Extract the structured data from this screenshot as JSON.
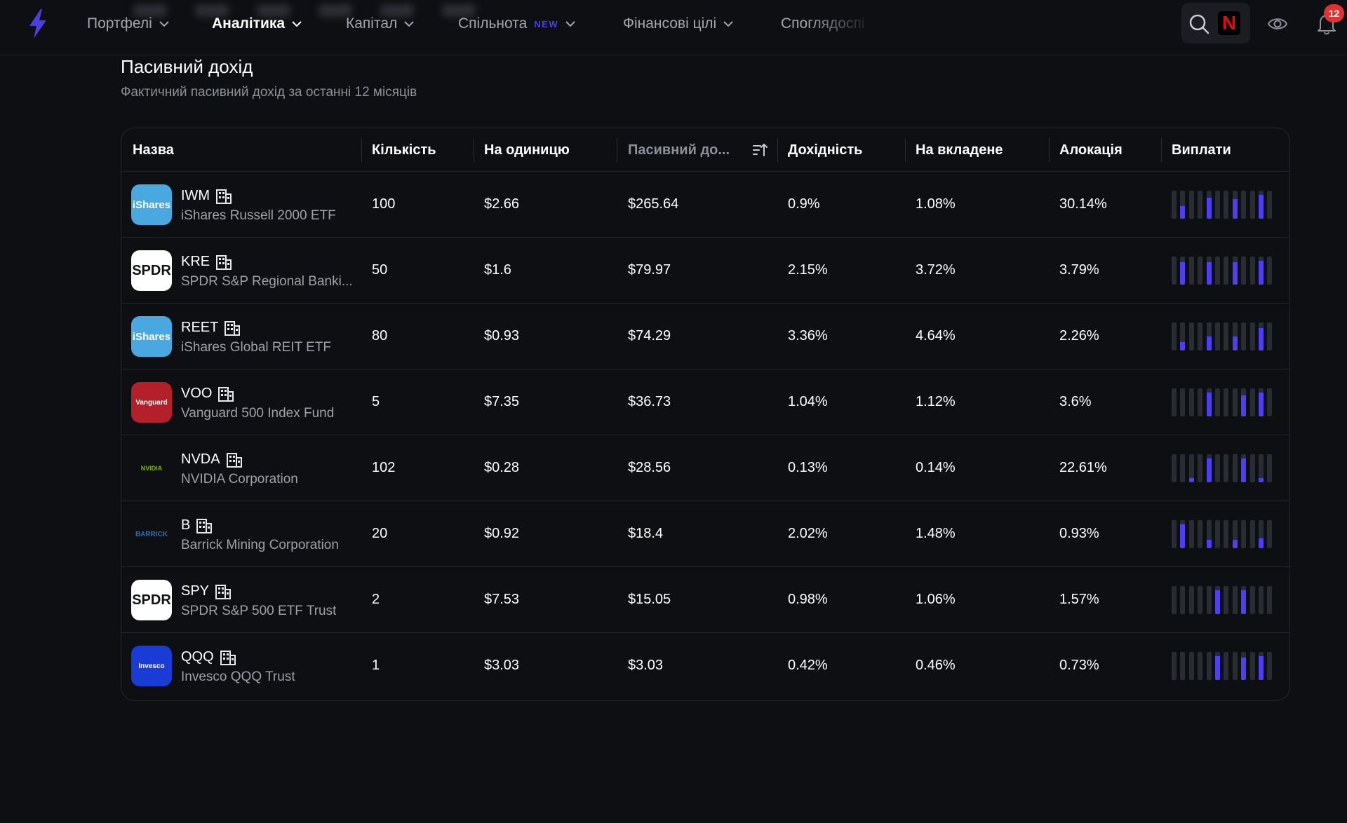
{
  "nav": {
    "items": [
      {
        "label": "Портфелі",
        "active": false,
        "badge": ""
      },
      {
        "label": "Аналітика",
        "active": true,
        "badge": ""
      },
      {
        "label": "Капітал",
        "active": false,
        "badge": ""
      },
      {
        "label": "Спільнота",
        "active": false,
        "badge": "NEW"
      },
      {
        "label": "Фінансові цілі",
        "active": false,
        "badge": ""
      },
      {
        "label": "Споглядоспі",
        "active": false,
        "badge": ""
      }
    ],
    "notification_count": "12",
    "netflix_letter": "N",
    "accent_color": "#4e3ff0"
  },
  "section": {
    "title": "Пасивний дохід",
    "subtitle": "Фактичний пасивний дохід за останні 12 місяців"
  },
  "table": {
    "headers": {
      "name": "Назва",
      "quantity": "Кількість",
      "per_unit": "На одиницю",
      "passive_income": "Пасивний до...",
      "yield": "Дохідність",
      "on_invested": "На вкладене",
      "allocation": "Алокація",
      "payouts": "Виплати"
    },
    "rows": [
      {
        "ticker": "IWM",
        "name": "iShares Russell 2000 ETF",
        "logo": "iShares",
        "logo_bg": "#4aa8e0",
        "logo_fg": "#ffffff",
        "quantity": "100",
        "per_unit": "$2.66",
        "passive_income": "$265.64",
        "yield": "0.9%",
        "on_invested": "1.08%",
        "allocation": "30.14%",
        "payouts": [
          0,
          0.45,
          0,
          0,
          0.75,
          0,
          0,
          0.7,
          0,
          0,
          0.85,
          0
        ]
      },
      {
        "ticker": "KRE",
        "name": "SPDR S&P Regional Banki...",
        "logo": "SPDR",
        "logo_bg": "#ffffff",
        "logo_fg": "#111111",
        "quantity": "50",
        "per_unit": "$1.6",
        "passive_income": "$79.97",
        "yield": "2.15%",
        "on_invested": "3.72%",
        "allocation": "3.79%",
        "payouts": [
          0,
          0.8,
          0,
          0,
          0.8,
          0,
          0,
          0.8,
          0,
          0,
          0.85,
          0
        ]
      },
      {
        "ticker": "REET",
        "name": "iShares Global REIT ETF",
        "logo": "iShares",
        "logo_bg": "#4aa8e0",
        "logo_fg": "#ffffff",
        "quantity": "80",
        "per_unit": "$0.93",
        "passive_income": "$74.29",
        "yield": "3.36%",
        "on_invested": "4.64%",
        "allocation": "2.26%",
        "payouts": [
          0,
          0.3,
          0,
          0,
          0.5,
          0,
          0,
          0.5,
          0,
          0,
          0.8,
          0
        ]
      },
      {
        "ticker": "VOO",
        "name": "Vanguard 500 Index Fund",
        "logo": "Vanguard",
        "logo_bg": "#b3202a",
        "logo_fg": "#ffffff",
        "quantity": "5",
        "per_unit": "$7.35",
        "passive_income": "$36.73",
        "yield": "1.04%",
        "on_invested": "1.12%",
        "allocation": "3.6%",
        "payouts": [
          0,
          0,
          0,
          0,
          0.85,
          0,
          0,
          0,
          0.75,
          0,
          0.85,
          0
        ]
      },
      {
        "ticker": "NVDA",
        "name": "NVIDIA Corporation",
        "logo": "NVIDIA",
        "logo_bg": "#0e0f12",
        "logo_fg": "#76b900",
        "quantity": "102",
        "per_unit": "$0.28",
        "passive_income": "$28.56",
        "yield": "0.13%",
        "on_invested": "0.14%",
        "allocation": "22.61%",
        "payouts": [
          0,
          0,
          0.15,
          0,
          0.85,
          0,
          0,
          0,
          0.85,
          0,
          0.15,
          0
        ]
      },
      {
        "ticker": "B",
        "name": "Barrick Mining Corporation",
        "logo": "BARRICK",
        "logo_bg": "#0e0f12",
        "logo_fg": "#3b6ba5",
        "quantity": "20",
        "per_unit": "$0.92",
        "passive_income": "$18.4",
        "yield": "2.02%",
        "on_invested": "1.48%",
        "allocation": "0.93%",
        "payouts": [
          0,
          0.85,
          0,
          0,
          0.3,
          0,
          0,
          0.3,
          0,
          0,
          0.35,
          0
        ]
      },
      {
        "ticker": "SPY",
        "name": "SPDR S&P 500 ETF Trust",
        "logo": "SPDR",
        "logo_bg": "#ffffff",
        "logo_fg": "#111111",
        "quantity": "2",
        "per_unit": "$7.53",
        "passive_income": "$15.05",
        "yield": "0.98%",
        "on_invested": "1.06%",
        "allocation": "1.57%",
        "payouts": [
          0,
          0,
          0,
          0,
          0,
          0.85,
          0,
          0,
          0.85,
          0,
          0,
          0
        ]
      },
      {
        "ticker": "QQQ",
        "name": "Invesco QQQ Trust",
        "logo": "Invesco",
        "logo_bg": "#1a3bd6",
        "logo_fg": "#ffffff",
        "quantity": "1",
        "per_unit": "$3.03",
        "passive_income": "$3.03",
        "yield": "0.42%",
        "on_invested": "0.46%",
        "allocation": "0.73%",
        "payouts": [
          0,
          0,
          0,
          0,
          0,
          0.85,
          0,
          0,
          0.8,
          0,
          0.85,
          0
        ]
      }
    ]
  }
}
